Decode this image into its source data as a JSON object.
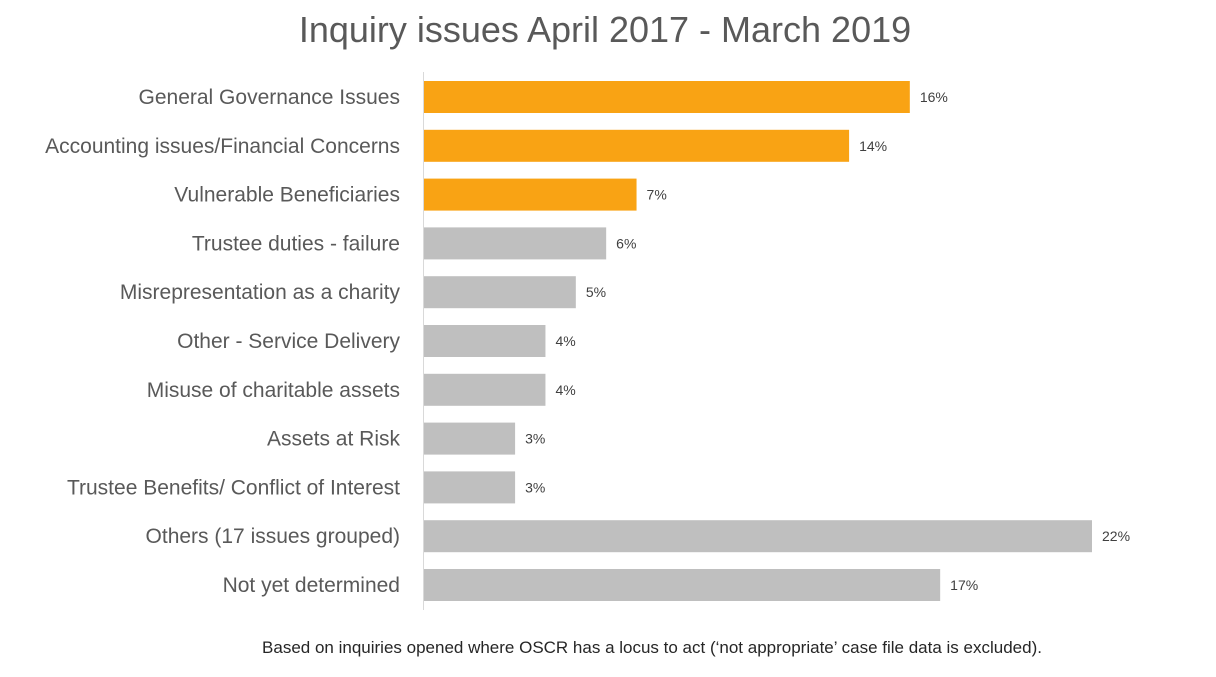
{
  "chart_data": {
    "type": "bar",
    "orientation": "horizontal",
    "title": "Inquiry issues April 2017 - March 2019",
    "footnote": "Based on inquiries opened where OSCR has a locus to act (‘not appropriate’ case file data is excluded).",
    "categories": [
      "General Governance Issues",
      "Accounting issues/Financial Concerns",
      "Vulnerable Beneficiaries",
      "Trustee duties - failure",
      "Misrepresentation as a charity",
      "Other - Service Delivery",
      "Misuse of charitable assets",
      "Assets at Risk",
      "Trustee Benefits/ Conflict of Interest",
      "Others (17 issues grouped)",
      "Not yet determined"
    ],
    "values": [
      16,
      14,
      7,
      6,
      5,
      4,
      4,
      3,
      3,
      22,
      17
    ],
    "value_labels": [
      "16%",
      "14%",
      "7%",
      "6%",
      "5%",
      "4%",
      "4%",
      "3%",
      "3%",
      "22%",
      "17%"
    ],
    "highlighted": [
      true,
      true,
      true,
      false,
      false,
      false,
      false,
      false,
      false,
      false,
      false
    ],
    "unit": "%",
    "xlim": [
      0,
      22
    ],
    "grid": false,
    "legend": "none",
    "colors": {
      "highlight": "#F9A314",
      "default": "#BFBFBF",
      "axis": "#D9D9D9"
    }
  }
}
